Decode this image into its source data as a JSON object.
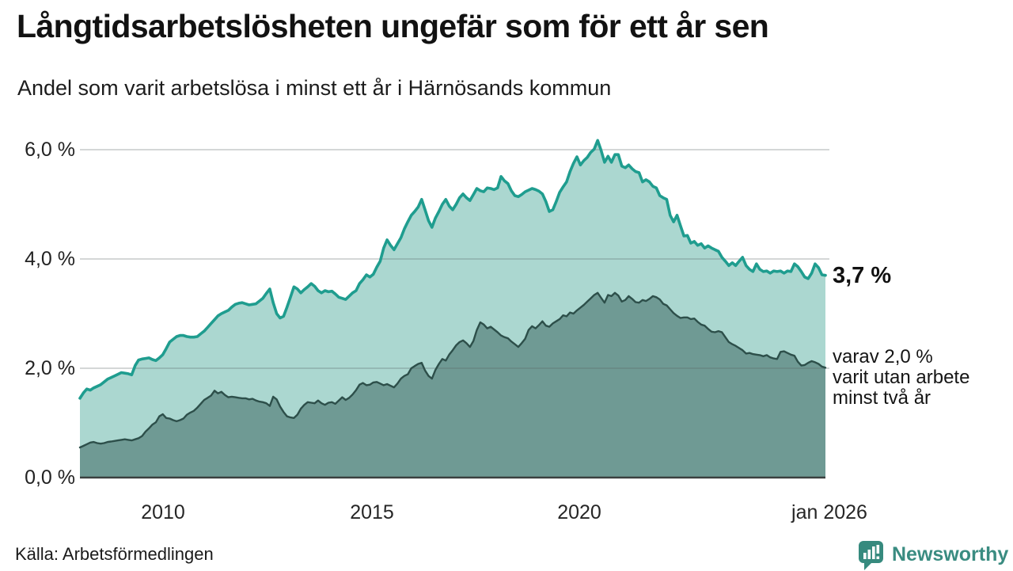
{
  "header": {
    "title": "Långtidsarbetslösheten ungefär som för ett år sen",
    "subtitle": "Andel som varit arbetslösa i minst ett år i Härnösands kommun"
  },
  "chart_data": {
    "type": "area",
    "title": "Långtidsarbetslösheten ungefär som för ett år sen",
    "subtitle": "Andel som varit arbetslösa i minst ett år i Härnösands kommun",
    "unit": "%",
    "ylim": [
      0,
      6.5
    ],
    "y_gridline_values": [
      6,
      4,
      2
    ],
    "y_tick_labels": [
      "6,0 %",
      "4,0 %",
      "2,0 %",
      "0,0 %"
    ],
    "x_tick_labels": [
      "2010",
      "2015",
      "2020",
      "jan 2026"
    ],
    "grid_on": true,
    "legend_position": "right-end-labels",
    "colors": {
      "line_1": "#1f9d8f",
      "fill_1": "#abd7d0",
      "line_2": "#2d4f4a",
      "fill_2": "#6f9a94",
      "grid": "#5a6663",
      "axis": "#3b403f"
    },
    "series": [
      {
        "name": "Andel som varit arbetslösa i minst ett år",
        "end_label": "3,7 %",
        "last_value": 3.7,
        "values": [
          1.45,
          1.55,
          1.62,
          1.6,
          1.64,
          1.67,
          1.7,
          1.75,
          1.8,
          1.83,
          1.86,
          1.89,
          1.92,
          1.91,
          1.9,
          1.88,
          2.05,
          2.15,
          2.17,
          2.18,
          2.19,
          2.16,
          2.14,
          2.19,
          2.25,
          2.36,
          2.48,
          2.53,
          2.58,
          2.6,
          2.6,
          2.58,
          2.57,
          2.57,
          2.58,
          2.63,
          2.68,
          2.75,
          2.82,
          2.89,
          2.96,
          3.0,
          3.03,
          3.06,
          3.12,
          3.17,
          3.19,
          3.2,
          3.18,
          3.16,
          3.17,
          3.18,
          3.23,
          3.28,
          3.37,
          3.45,
          3.2,
          3.0,
          2.92,
          2.95,
          3.12,
          3.3,
          3.49,
          3.45,
          3.38,
          3.44,
          3.49,
          3.55,
          3.5,
          3.42,
          3.38,
          3.42,
          3.4,
          3.41,
          3.36,
          3.3,
          3.28,
          3.26,
          3.32,
          3.38,
          3.42,
          3.55,
          3.62,
          3.71,
          3.67,
          3.72,
          3.85,
          3.96,
          4.2,
          4.35,
          4.25,
          4.17,
          4.28,
          4.39,
          4.55,
          4.68,
          4.8,
          4.87,
          4.95,
          5.09,
          4.9,
          4.7,
          4.58,
          4.75,
          4.87,
          5.0,
          5.09,
          4.97,
          4.9,
          5.0,
          5.12,
          5.19,
          5.12,
          5.07,
          5.18,
          5.29,
          5.25,
          5.23,
          5.3,
          5.29,
          5.27,
          5.3,
          5.51,
          5.43,
          5.38,
          5.25,
          5.16,
          5.14,
          5.18,
          5.23,
          5.26,
          5.29,
          5.27,
          5.24,
          5.19,
          5.05,
          4.87,
          4.9,
          5.05,
          5.22,
          5.32,
          5.41,
          5.6,
          5.75,
          5.87,
          5.72,
          5.8,
          5.86,
          5.95,
          6.01,
          6.17,
          5.99,
          5.77,
          5.88,
          5.77,
          5.91,
          5.91,
          5.7,
          5.67,
          5.72,
          5.65,
          5.6,
          5.58,
          5.41,
          5.45,
          5.41,
          5.33,
          5.3,
          5.16,
          5.12,
          5.09,
          4.8,
          4.68,
          4.8,
          4.61,
          4.42,
          4.43,
          4.29,
          4.32,
          4.25,
          4.28,
          4.2,
          4.24,
          4.2,
          4.17,
          4.14,
          4.03,
          3.96,
          3.88,
          3.93,
          3.88,
          3.96,
          4.03,
          3.88,
          3.81,
          3.77,
          3.91,
          3.81,
          3.77,
          3.78,
          3.74,
          3.78,
          3.77,
          3.78,
          3.74,
          3.78,
          3.77,
          3.91,
          3.86,
          3.77,
          3.67,
          3.64,
          3.74,
          3.91,
          3.84,
          3.71,
          3.7
        ]
      },
      {
        "name": "varav utan arbete minst två år",
        "end_label": "varav 2,0 %\nvarit utan arbete\nminst två år",
        "last_value": 2.0,
        "values": [
          0.55,
          0.58,
          0.61,
          0.64,
          0.65,
          0.63,
          0.62,
          0.63,
          0.65,
          0.66,
          0.67,
          0.68,
          0.69,
          0.7,
          0.69,
          0.68,
          0.7,
          0.72,
          0.76,
          0.84,
          0.9,
          0.97,
          1.01,
          1.12,
          1.16,
          1.09,
          1.08,
          1.05,
          1.03,
          1.05,
          1.08,
          1.15,
          1.19,
          1.22,
          1.28,
          1.35,
          1.42,
          1.46,
          1.5,
          1.59,
          1.54,
          1.57,
          1.51,
          1.47,
          1.48,
          1.47,
          1.46,
          1.45,
          1.45,
          1.43,
          1.44,
          1.41,
          1.39,
          1.38,
          1.36,
          1.31,
          1.48,
          1.43,
          1.3,
          1.2,
          1.12,
          1.1,
          1.09,
          1.15,
          1.26,
          1.33,
          1.38,
          1.37,
          1.36,
          1.41,
          1.36,
          1.33,
          1.37,
          1.38,
          1.35,
          1.41,
          1.47,
          1.42,
          1.46,
          1.52,
          1.6,
          1.7,
          1.73,
          1.69,
          1.7,
          1.74,
          1.75,
          1.72,
          1.69,
          1.71,
          1.68,
          1.65,
          1.72,
          1.81,
          1.86,
          1.89,
          2.0,
          2.04,
          2.08,
          2.1,
          1.96,
          1.86,
          1.81,
          1.97,
          2.08,
          2.17,
          2.14,
          2.25,
          2.33,
          2.42,
          2.48,
          2.51,
          2.46,
          2.39,
          2.5,
          2.7,
          2.84,
          2.8,
          2.73,
          2.76,
          2.71,
          2.66,
          2.6,
          2.57,
          2.55,
          2.49,
          2.44,
          2.39,
          2.46,
          2.54,
          2.7,
          2.77,
          2.73,
          2.79,
          2.86,
          2.78,
          2.76,
          2.82,
          2.86,
          2.9,
          2.97,
          2.95,
          3.02,
          3.0,
          3.06,
          3.11,
          3.16,
          3.22,
          3.28,
          3.34,
          3.38,
          3.29,
          3.2,
          3.34,
          3.32,
          3.38,
          3.33,
          3.22,
          3.25,
          3.32,
          3.27,
          3.21,
          3.2,
          3.25,
          3.23,
          3.27,
          3.32,
          3.3,
          3.26,
          3.18,
          3.15,
          3.08,
          3.01,
          2.96,
          2.92,
          2.93,
          2.93,
          2.9,
          2.91,
          2.85,
          2.8,
          2.78,
          2.72,
          2.67,
          2.66,
          2.68,
          2.66,
          2.57,
          2.48,
          2.44,
          2.41,
          2.37,
          2.33,
          2.27,
          2.28,
          2.26,
          2.25,
          2.24,
          2.22,
          2.24,
          2.2,
          2.18,
          2.17,
          2.3,
          2.31,
          2.28,
          2.25,
          2.23,
          2.12,
          2.05,
          2.06,
          2.1,
          2.13,
          2.11,
          2.08,
          2.03,
          2.01
        ]
      }
    ]
  },
  "footer": {
    "source": "Källa: Arbetsförmedlingen",
    "logo_text": "Newsworthy"
  }
}
